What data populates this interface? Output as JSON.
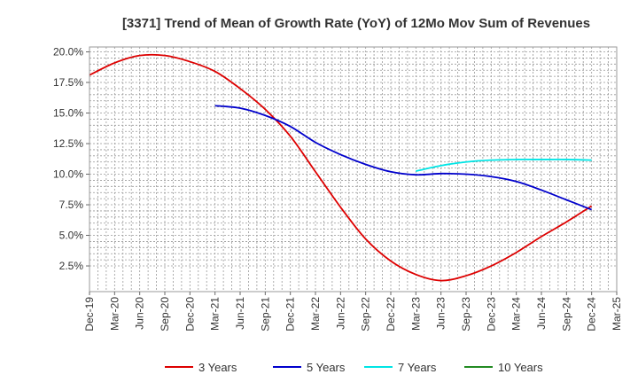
{
  "chart_data": {
    "type": "line",
    "title": "[3371]  Trend of Mean of Growth Rate (YoY) of 12Mo Mov Sum of Revenues",
    "xlabel": "",
    "ylabel": "",
    "x_ticks": [
      "Dec-19",
      "Mar-20",
      "Jun-20",
      "Sep-20",
      "Dec-20",
      "Mar-21",
      "Jun-21",
      "Sep-21",
      "Dec-21",
      "Mar-22",
      "Jun-22",
      "Sep-22",
      "Dec-22",
      "Mar-23",
      "Jun-23",
      "Sep-23",
      "Dec-23",
      "Mar-24",
      "Jun-24",
      "Sep-24",
      "Dec-24",
      "Mar-25"
    ],
    "y_ticks": [
      "2.5%",
      "5.0%",
      "7.5%",
      "10.0%",
      "12.5%",
      "15.0%",
      "17.5%",
      "20.0%"
    ],
    "y_tick_values": [
      2.5,
      5.0,
      7.5,
      10.0,
      12.5,
      15.0,
      17.5,
      20.0
    ],
    "ylim": [
      0.4,
      20.4
    ],
    "grid": true,
    "legend_position": "bottom",
    "series": [
      {
        "name": "3 Years",
        "color": "#dd0000",
        "x": [
          0,
          1,
          2,
          3,
          4,
          5,
          6,
          7,
          8,
          9,
          10,
          11,
          12,
          13,
          14,
          15,
          16,
          17,
          18,
          19,
          20
        ],
        "values": [
          18.1,
          19.1,
          19.7,
          19.7,
          19.2,
          18.4,
          17.0,
          15.3,
          13.1,
          10.2,
          7.3,
          4.7,
          2.9,
          1.8,
          1.3,
          1.7,
          2.5,
          3.6,
          4.9,
          6.1,
          7.4
        ]
      },
      {
        "name": "5 Years",
        "color": "#0000cc",
        "x": [
          5,
          6,
          7,
          8,
          9,
          10,
          11,
          12,
          13,
          14,
          15,
          16,
          17,
          18,
          19,
          20
        ],
        "values": [
          15.6,
          15.4,
          14.8,
          13.9,
          12.6,
          11.6,
          10.8,
          10.2,
          9.95,
          10.05,
          10.0,
          9.8,
          9.4,
          8.7,
          7.9,
          7.1
        ]
      },
      {
        "name": "7 Years",
        "color": "#00e5e5",
        "x": [
          13,
          14,
          15,
          16,
          17,
          18,
          19,
          20
        ],
        "values": [
          10.25,
          10.7,
          11.0,
          11.15,
          11.2,
          11.2,
          11.2,
          11.15
        ]
      },
      {
        "name": "10 Years",
        "color": "#228b22",
        "x": [],
        "values": []
      }
    ]
  }
}
